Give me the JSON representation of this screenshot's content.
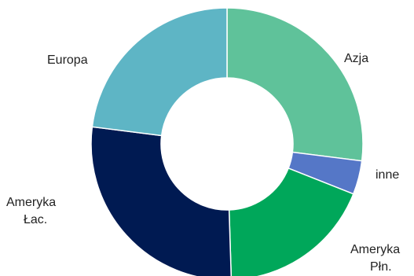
{
  "chart_data": {
    "type": "pie",
    "variant": "donut",
    "title": "",
    "slices": [
      {
        "label": "Azja",
        "value": 27.0,
        "color": "#5fc29a"
      },
      {
        "label": "inne",
        "value": 4.0,
        "color": "#5577c7"
      },
      {
        "label": "Ameryka Płn.",
        "value": 18.5,
        "color": "#00a75a"
      },
      {
        "label": "Ameryka Łac.",
        "value": 27.5,
        "color": "#001a52"
      },
      {
        "label": "Europa",
        "value": 23.0,
        "color": "#5eb5c5"
      }
    ],
    "legend": "none",
    "labels_position": "outside"
  }
}
